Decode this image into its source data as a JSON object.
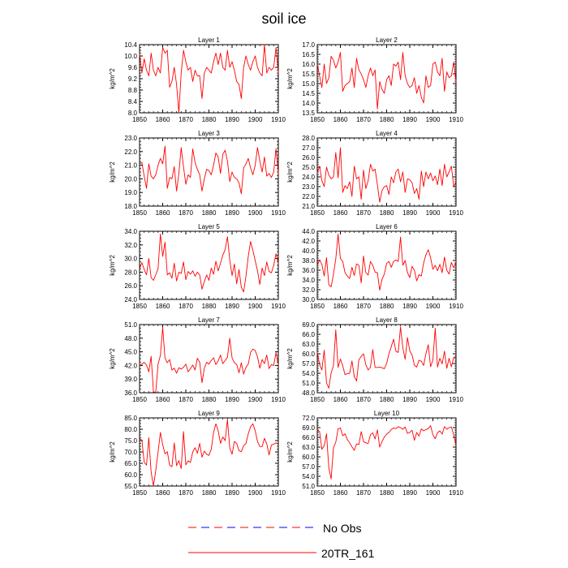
{
  "figure": {
    "title": "soil ice",
    "y_axis_label": "kg/m^2",
    "legend": [
      {
        "label": "No Obs",
        "style": "dashed",
        "colors": [
          "#ff0000",
          "#0000ff"
        ]
      },
      {
        "label": "20TR_161",
        "style": "solid",
        "color": "#ff0000"
      }
    ]
  },
  "chart_data": [
    {
      "type": "line",
      "title": "Layer 1",
      "ylabel": "kg/m^2",
      "xlim": [
        1850,
        1910
      ],
      "ylim": [
        8.0,
        10.4
      ],
      "x_ticks": [
        "1850",
        "1860",
        "1870",
        "1880",
        "1890",
        "1900",
        "1910"
      ],
      "y_ticks": [
        "8.0",
        "8.4",
        "8.8",
        "9.2",
        "9.6",
        "10.0",
        "10.4"
      ],
      "x_start": 1850,
      "series": [
        {
          "color": "#ff0000",
          "values": [
            10.1,
            9.4,
            9.9,
            9.5,
            9.3,
            10.1,
            9.5,
            9.3,
            9.6,
            9.4,
            10.3,
            10.1,
            10.2,
            8.9,
            9.1,
            9.6,
            9.0,
            8.0,
            9.4,
            10.2,
            9.8,
            9.5,
            9.6,
            9.1,
            9.5,
            9.3,
            9.3,
            8.5,
            9.4,
            9.6,
            9.5,
            9.4,
            9.8,
            10.1,
            9.7,
            10.1,
            9.6,
            9.5,
            10.2,
            9.6,
            9.8,
            9.5,
            9.1,
            9.0,
            8.5,
            9.6,
            10.0,
            9.7,
            9.5,
            9.8,
            10.0,
            9.6,
            9.4,
            9.3,
            10.4,
            9.4,
            9.6,
            9.5,
            9.6,
            10.3,
            9.4
          ]
        }
      ]
    },
    {
      "type": "line",
      "title": "Layer 2",
      "ylabel": "kg/m^2",
      "xlim": [
        1850,
        1910
      ],
      "ylim": [
        13.5,
        17.0
      ],
      "x_ticks": [
        "1850",
        "1860",
        "1870",
        "1880",
        "1890",
        "1900",
        "1910"
      ],
      "y_ticks": [
        "13.5",
        "14.0",
        "14.5",
        "15.0",
        "15.5",
        "16.0",
        "16.5",
        "17.0"
      ],
      "x_start": 1850,
      "series": [
        {
          "color": "#ff0000",
          "values": [
            16.0,
            15.4,
            14.8,
            16.0,
            15.0,
            15.3,
            16.4,
            16.2,
            15.8,
            16.1,
            16.6,
            14.6,
            14.9,
            15.0,
            15.1,
            15.8,
            14.8,
            16.3,
            15.7,
            15.5,
            15.2,
            14.8,
            15.4,
            15.8,
            15.4,
            15.7,
            13.7,
            15.1,
            14.7,
            14.5,
            15.2,
            15.4,
            14.9,
            16.0,
            15.9,
            16.1,
            15.2,
            16.6,
            15.4,
            15.0,
            14.8,
            14.9,
            15.3,
            14.5,
            14.9,
            14.3,
            14.0,
            15.4,
            14.8,
            14.9,
            16.0,
            16.1,
            15.6,
            15.4,
            16.3,
            14.6,
            15.6,
            15.3,
            15.4,
            16.1,
            15.1
          ]
        }
      ]
    },
    {
      "type": "line",
      "title": "Layer 3",
      "ylabel": "kg/m^2",
      "xlim": [
        1850,
        1910
      ],
      "ylim": [
        18.0,
        23.0
      ],
      "x_ticks": [
        "1850",
        "1860",
        "1870",
        "1880",
        "1890",
        "1900",
        "1910"
      ],
      "y_ticks": [
        "18.0",
        "19.0",
        "20.0",
        "21.0",
        "22.0",
        "23.0"
      ],
      "x_start": 1850,
      "series": [
        {
          "color": "#ff0000",
          "values": [
            21.1,
            21.2,
            20.2,
            19.3,
            21.1,
            20.2,
            20.0,
            20.3,
            21.0,
            21.5,
            21.1,
            22.4,
            19.3,
            20.1,
            20.0,
            20.9,
            19.1,
            20.4,
            22.3,
            20.9,
            19.6,
            20.3,
            20.1,
            22.2,
            21.2,
            20.7,
            20.3,
            19.1,
            20.0,
            20.7,
            20.6,
            20.3,
            21.0,
            21.9,
            21.6,
            20.4,
            21.8,
            22.1,
            21.3,
            19.8,
            20.5,
            20.1,
            20.0,
            19.7,
            18.9,
            20.8,
            21.1,
            21.5,
            20.8,
            20.3,
            21.0,
            22.3,
            21.3,
            20.5,
            21.6,
            20.2,
            20.4,
            20.1,
            20.5,
            22.2,
            20.4
          ]
        }
      ]
    },
    {
      "type": "line",
      "title": "Layer 4",
      "ylabel": "kg/m^2",
      "xlim": [
        1850,
        1910
      ],
      "ylim": [
        21.0,
        28.0
      ],
      "x_ticks": [
        "1850",
        "1860",
        "1870",
        "1880",
        "1890",
        "1900",
        "1910"
      ],
      "y_ticks": [
        "21.0",
        "22.0",
        "23.0",
        "24.0",
        "25.0",
        "26.0",
        "27.0",
        "28.0"
      ],
      "x_start": 1850,
      "series": [
        {
          "color": "#ff0000",
          "values": [
            24.4,
            25.1,
            23.6,
            23.0,
            25.0,
            24.2,
            23.8,
            24.0,
            26.5,
            23.9,
            27.0,
            22.4,
            23.1,
            22.8,
            23.5,
            22.0,
            25.1,
            23.8,
            24.0,
            21.7,
            24.7,
            22.8,
            23.6,
            25.3,
            24.6,
            24.8,
            23.2,
            21.4,
            22.6,
            23.0,
            23.1,
            22.2,
            24.0,
            23.4,
            24.5,
            24.8,
            23.5,
            24.5,
            22.4,
            23.8,
            23.7,
            23.4,
            22.3,
            22.8,
            21.7,
            24.6,
            23.0,
            24.5,
            23.8,
            24.4,
            23.6,
            24.1,
            23.2,
            24.8,
            23.1,
            25.3,
            24.0,
            24.5,
            25.1,
            23.0,
            23.5
          ]
        }
      ]
    },
    {
      "type": "line",
      "title": "Layer 5",
      "ylabel": "kg/m^2",
      "xlim": [
        1850,
        1910
      ],
      "ylim": [
        24.0,
        34.0
      ],
      "x_ticks": [
        "1850",
        "1860",
        "1870",
        "1880",
        "1890",
        "1900",
        "1910"
      ],
      "y_ticks": [
        "24.0",
        "26.0",
        "28.0",
        "30.0",
        "32.0",
        "34.0"
      ],
      "x_start": 1850,
      "series": [
        {
          "color": "#ff0000",
          "values": [
            28.5,
            29.4,
            28.4,
            27.6,
            30.0,
            27.2,
            26.8,
            27.6,
            28.5,
            33.6,
            30.3,
            32.4,
            27.6,
            27.9,
            27.1,
            29.3,
            26.7,
            28.0,
            27.8,
            29.5,
            26.9,
            28.1,
            27.7,
            28.2,
            27.4,
            28.0,
            27.6,
            25.5,
            26.6,
            27.6,
            26.8,
            28.6,
            27.7,
            29.6,
            28.2,
            29.3,
            30.5,
            31.3,
            33.2,
            29.8,
            27.5,
            29.2,
            26.3,
            28.4,
            25.8,
            25.1,
            27.4,
            30.3,
            32.5,
            31.2,
            29.7,
            28.2,
            26.2,
            28.6,
            27.5,
            29.5,
            28.1,
            27.9,
            29.0,
            30.7,
            29.3
          ]
        }
      ]
    },
    {
      "type": "line",
      "title": "Layer 6",
      "ylabel": "kg/m^2",
      "xlim": [
        1850,
        1910
      ],
      "ylim": [
        30.0,
        44.0
      ],
      "x_ticks": [
        "1850",
        "1860",
        "1870",
        "1880",
        "1890",
        "1900",
        "1910"
      ],
      "y_ticks": [
        "30.0",
        "32.0",
        "34.0",
        "36.0",
        "38.0",
        "40.0",
        "42.0",
        "44.0"
      ],
      "x_start": 1850,
      "series": [
        {
          "color": "#ff0000",
          "values": [
            37.0,
            38.1,
            37.2,
            34.8,
            38.6,
            33.0,
            32.6,
            35.2,
            38.3,
            43.4,
            38.4,
            37.8,
            35.5,
            34.8,
            34.3,
            36.6,
            34.9,
            37.3,
            37.0,
            33.4,
            38.9,
            35.5,
            35.0,
            37.8,
            37.0,
            35.6,
            35.5,
            31.9,
            34.1,
            35.2,
            37.4,
            37.8,
            36.6,
            37.8,
            38.1,
            37.8,
            42.8,
            37.0,
            38.0,
            35.5,
            34.5,
            36.8,
            36.0,
            33.8,
            35.1,
            34.8,
            37.5,
            39.2,
            40.2,
            38.6,
            36.2,
            37.0,
            35.9,
            37.2,
            35.5,
            38.7,
            36.0,
            35.2,
            37.6,
            36.5,
            37.7
          ]
        }
      ]
    },
    {
      "type": "line",
      "title": "Layer 7",
      "ylabel": "kg/m^2",
      "xlim": [
        1850,
        1910
      ],
      "ylim": [
        36.0,
        51.0
      ],
      "x_ticks": [
        "1850",
        "1860",
        "1870",
        "1880",
        "1890",
        "1900",
        "1910"
      ],
      "y_ticks": [
        "36.0",
        "39.0",
        "42.0",
        "45.0",
        "48.0",
        "51.0"
      ],
      "x_start": 1850,
      "series": [
        {
          "color": "#ff0000",
          "values": [
            42.0,
            42.3,
            42.7,
            42.1,
            40.6,
            44.0,
            36.2,
            36.1,
            42.3,
            44.2,
            50.4,
            43.6,
            42.6,
            43.3,
            41.0,
            41.4,
            40.3,
            41.5,
            41.2,
            41.6,
            42.3,
            40.6,
            41.3,
            42.1,
            41.0,
            43.6,
            42.7,
            38.2,
            41.4,
            42.7,
            42.3,
            43.1,
            43.7,
            42.2,
            43.0,
            44.3,
            42.4,
            43.1,
            43.8,
            48.0,
            43.7,
            42.6,
            42.2,
            40.4,
            42.6,
            40.1,
            41.6,
            42.3,
            44.9,
            45.6,
            45.3,
            43.9,
            41.4,
            43.3,
            42.4,
            44.3,
            41.3,
            42.2,
            42.0,
            44.8,
            42.1
          ]
        }
      ]
    },
    {
      "type": "line",
      "title": "Layer 8",
      "ylabel": "kg/m^2",
      "xlim": [
        1850,
        1910
      ],
      "ylim": [
        48.0,
        69.0
      ],
      "x_ticks": [
        "1850",
        "1860",
        "1870",
        "1880",
        "1890",
        "1900",
        "1910"
      ],
      "y_ticks": [
        "48.0",
        "51.0",
        "54.0",
        "57.0",
        "60.0",
        "63.0",
        "66.0",
        "69.0"
      ],
      "x_start": 1850,
      "series": [
        {
          "color": "#ff0000",
          "values": [
            60.5,
            56.7,
            55.0,
            61.1,
            51.0,
            49.4,
            54.1,
            56.4,
            67.4,
            55.8,
            58.4,
            56.3,
            53.6,
            53.9,
            54.0,
            57.8,
            53.0,
            51.6,
            58.2,
            59.2,
            60.0,
            56.6,
            55.0,
            55.9,
            61.3,
            55.8,
            55.8,
            55.9,
            55.7,
            55.4,
            57.0,
            60.0,
            62.2,
            64.5,
            60.8,
            60.4,
            68.3,
            61.9,
            58.3,
            65.0,
            60.9,
            59.6,
            56.5,
            55.9,
            58.0,
            57.7,
            56.4,
            60.1,
            62.8,
            56.0,
            58.1,
            67.9,
            55.9,
            58.6,
            56.9,
            60.8,
            55.5,
            58.6,
            56.0,
            58.9,
            58.8
          ]
        }
      ]
    },
    {
      "type": "line",
      "title": "Layer 9",
      "ylabel": "kg/m^2",
      "xlim": [
        1850,
        1910
      ],
      "ylim": [
        55.0,
        85.0
      ],
      "x_ticks": [
        "1850",
        "1860",
        "1870",
        "1880",
        "1890",
        "1900",
        "1910"
      ],
      "y_ticks": [
        "55.0",
        "60.0",
        "65.0",
        "70.0",
        "75.0",
        "80.0",
        "85.0"
      ],
      "x_start": 1850,
      "series": [
        {
          "color": "#ff0000",
          "values": [
            76.0,
            75.2,
            65.5,
            64.2,
            76.3,
            61.2,
            55.0,
            61.8,
            70.0,
            78.6,
            73.2,
            69.2,
            70.1,
            64.2,
            63.5,
            74.0,
            64.0,
            66.2,
            62.7,
            79.0,
            64.3,
            66.1,
            65.4,
            70.0,
            71.9,
            69.4,
            73.8,
            67.7,
            70.4,
            69.0,
            68.5,
            71.2,
            78.6,
            82.4,
            79.3,
            73.8,
            76.6,
            75.0,
            84.2,
            71.8,
            69.0,
            74.6,
            73.8,
            70.6,
            70.1,
            72.8,
            73.7,
            78.0,
            81.1,
            82.4,
            79.4,
            74.6,
            72.4,
            72.4,
            76.0,
            73.6,
            68.7,
            73.0,
            73.4,
            74.0,
            73.4
          ]
        }
      ]
    },
    {
      "type": "line",
      "title": "Layer 10",
      "ylabel": "kg/m^2",
      "xlim": [
        1850,
        1910
      ],
      "ylim": [
        51.0,
        72.0
      ],
      "x_ticks": [
        "1850",
        "1860",
        "1870",
        "1880",
        "1890",
        "1900",
        "1910"
      ],
      "y_ticks": [
        "51.0",
        "54.0",
        "57.0",
        "60.0",
        "63.0",
        "66.0",
        "69.0",
        "72.0"
      ],
      "x_start": 1850,
      "series": [
        {
          "color": "#ff0000",
          "values": [
            68.2,
            67.8,
            62.3,
            63.4,
            67.1,
            56.5,
            53.2,
            62.8,
            64.5,
            68.6,
            68.9,
            66.5,
            67.1,
            65.3,
            64.3,
            63.1,
            62.0,
            64.0,
            63.8,
            67.8,
            64.7,
            64.3,
            64.1,
            66.8,
            67.4,
            65.5,
            68.3,
            63.0,
            64.7,
            66.1,
            67.0,
            67.5,
            68.4,
            68.9,
            68.7,
            69.3,
            69.0,
            68.5,
            69.2,
            67.2,
            67.5,
            68.2,
            65.1,
            67.5,
            66.4,
            68.6,
            68.0,
            68.4,
            68.7,
            69.6,
            66.8,
            65.6,
            67.4,
            68.0,
            67.0,
            69.3,
            68.5,
            69.0,
            69.2,
            66.8,
            63.6
          ]
        }
      ]
    }
  ]
}
